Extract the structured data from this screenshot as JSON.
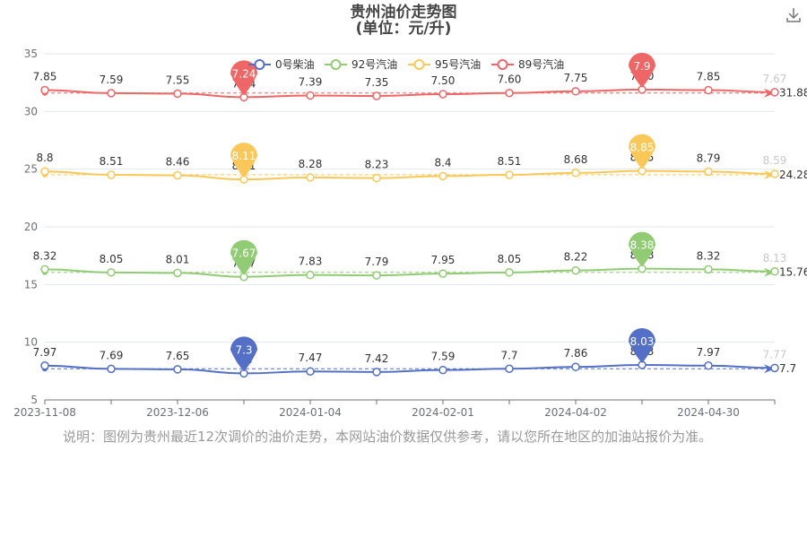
{
  "title": {
    "line1": "贵州油价走势图",
    "line2": "(单位：元/升)"
  },
  "download_icon": "download-icon",
  "note": "说明：图例为贵州最近12次调价的油价走势，本网站油价数据仅供参考，请以您所在地区的加油站报价为准。",
  "chart_data": {
    "type": "line",
    "x_tick_labels": [
      "2023-11-08",
      "2023-12-06",
      "2024-01-04",
      "2024-02-01",
      "2024-04-02",
      "2024-04-30"
    ],
    "x_tick_indices": [
      0,
      2,
      4,
      6,
      8,
      10
    ],
    "ylim": [
      5,
      35
    ],
    "y_ticks": [
      5,
      10,
      15,
      20,
      25,
      30,
      35
    ],
    "legend_position": "top-center",
    "series": [
      {
        "name": "0号柴油",
        "color": "#5470c6",
        "values": [
          7.97,
          7.69,
          7.65,
          7.3,
          7.47,
          7.42,
          7.59,
          7.7,
          7.86,
          8.03,
          7.97,
          7.77
        ],
        "point_labels": [
          "7.97",
          "7.69",
          "7.65",
          "7.3",
          "7.47",
          "7.42",
          "7.59",
          "7.7",
          "7.86",
          "8.03",
          "7.97",
          "7.77"
        ],
        "y_offset": 0,
        "min_marker": {
          "index": 3,
          "label": "7.3"
        },
        "max_marker": {
          "index": 9,
          "label": "8.03"
        },
        "mark_line_label": "7.7"
      },
      {
        "name": "92号汽油",
        "color": "#91cc75",
        "values": [
          8.32,
          8.05,
          8.01,
          7.67,
          7.83,
          7.79,
          7.95,
          8.05,
          8.22,
          8.38,
          8.32,
          8.13
        ],
        "point_labels": [
          "8.32",
          "8.05",
          "8.01",
          "7.67",
          "7.83",
          "7.79",
          "7.95",
          "8.05",
          "8.22",
          "8.38",
          "8.32",
          "8.13"
        ],
        "y_offset": 8,
        "min_marker": {
          "index": 3,
          "label": "7.67"
        },
        "max_marker": {
          "index": 9,
          "label": "8.38"
        },
        "mark_line_label": "15.76"
      },
      {
        "name": "95号汽油",
        "color": "#fac858",
        "values": [
          8.8,
          8.51,
          8.46,
          8.11,
          8.28,
          8.23,
          8.4,
          8.51,
          8.68,
          8.85,
          8.79,
          8.59
        ],
        "point_labels": [
          "8.8",
          "8.51",
          "8.46",
          "8.11",
          "8.28",
          "8.23",
          "8.4",
          "8.51",
          "8.68",
          "8.85",
          "8.79",
          "8.59"
        ],
        "y_offset": 16,
        "min_marker": {
          "index": 3,
          "label": "8.11"
        },
        "max_marker": {
          "index": 9,
          "label": "8.85"
        },
        "mark_line_label": "24.28"
      },
      {
        "name": "89号汽油",
        "color": "#ee6666",
        "values": [
          7.85,
          7.59,
          7.55,
          7.24,
          7.39,
          7.35,
          7.5,
          7.6,
          7.75,
          7.9,
          7.85,
          7.67
        ],
        "point_labels": [
          "7.85",
          "7.59",
          "7.55",
          "7.24",
          "7.39",
          "7.35",
          "7.50",
          "7.60",
          "7.75",
          "7.90",
          "7.85",
          "7.67"
        ],
        "y_offset": 24,
        "min_marker": {
          "index": 3,
          "label": "7.24"
        },
        "max_marker": {
          "index": 9,
          "label": "7.9"
        },
        "mark_line_label": "31.88"
      }
    ]
  }
}
